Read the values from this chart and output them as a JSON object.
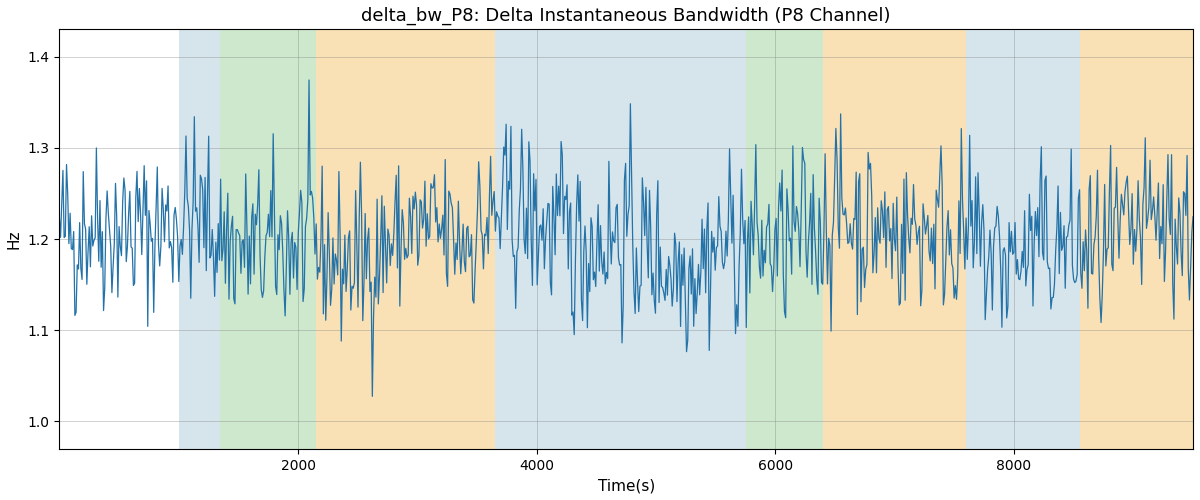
{
  "title": "delta_bw_P8: Delta Instantaneous Bandwidth (P8 Channel)",
  "xlabel": "Time(s)",
  "ylabel": "Hz",
  "xlim": [
    0,
    9500
  ],
  "ylim": [
    0.97,
    1.43
  ],
  "yticks": [
    1.0,
    1.1,
    1.2,
    1.3,
    1.4
  ],
  "xticks": [
    2000,
    4000,
    6000,
    8000
  ],
  "line_color": "#2372a8",
  "line_width": 0.9,
  "background_color": "#ffffff",
  "seed": 42,
  "n_points": 950,
  "x_max": 9500,
  "signal_mean": 1.2,
  "signal_std": 0.058,
  "bands": [
    {
      "xmin": 1000,
      "xmax": 1350,
      "color": "#aeccdb",
      "alpha": 0.5
    },
    {
      "xmin": 1350,
      "xmax": 2150,
      "color": "#90cc90",
      "alpha": 0.45
    },
    {
      "xmin": 2150,
      "xmax": 3650,
      "color": "#f5c878",
      "alpha": 0.55
    },
    {
      "xmin": 3650,
      "xmax": 5500,
      "color": "#aeccdb",
      "alpha": 0.5
    },
    {
      "xmin": 5500,
      "xmax": 5750,
      "color": "#aeccdb",
      "alpha": 0.5
    },
    {
      "xmin": 5750,
      "xmax": 6400,
      "color": "#90cc90",
      "alpha": 0.45
    },
    {
      "xmin": 6400,
      "xmax": 7600,
      "color": "#f5c878",
      "alpha": 0.55
    },
    {
      "xmin": 7600,
      "xmax": 8550,
      "color": "#aeccdb",
      "alpha": 0.5
    },
    {
      "xmin": 8550,
      "xmax": 9500,
      "color": "#f5c878",
      "alpha": 0.55
    }
  ],
  "title_fontsize": 13,
  "label_fontsize": 11,
  "tick_fontsize": 10,
  "figure_width": 12.0,
  "figure_height": 5.0,
  "dpi": 100
}
